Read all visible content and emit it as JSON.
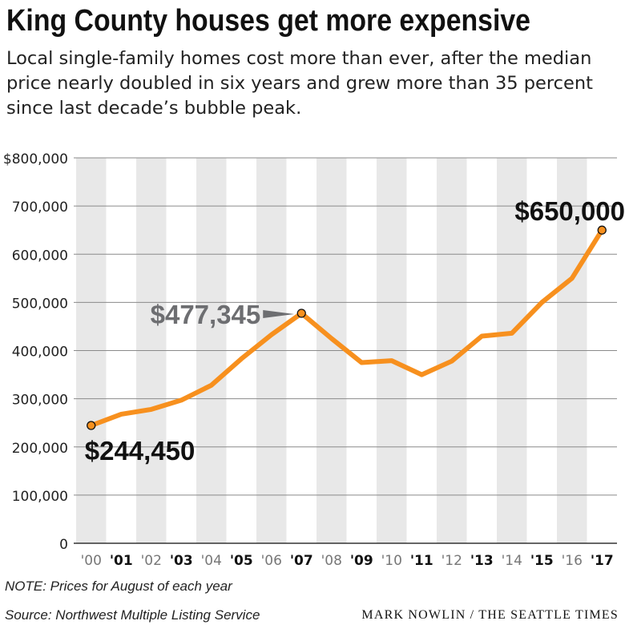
{
  "colors": {
    "line": "#f7901e",
    "band": "#e8e8e8",
    "text": "#111111",
    "callout_gray": "#6d6e71"
  },
  "header": {
    "title": "King County houses get more expensive",
    "subtitle_lines": [
      "Local single-family homes cost more than ever, after the median",
      "price nearly doubled in six years and grew more than 35 percent",
      "since last decade’s bubble peak."
    ]
  },
  "footer": {
    "note": "NOTE: Prices for August of each year",
    "source": "Source: Northwest Multiple Listing Service",
    "credit": "MARK NOWLIN / THE SEATTLE TIMES"
  },
  "chart_data": {
    "type": "line",
    "title": "King County houses get more expensive",
    "x": [
      "'00",
      "'01",
      "'02",
      "'03",
      "'04",
      "'05",
      "'06",
      "'07",
      "'08",
      "'09",
      "'10",
      "'11",
      "'12",
      "'13",
      "'14",
      "'15",
      "'16",
      "'17"
    ],
    "series": [
      {
        "values": [
          244450,
          268000,
          278000,
          297000,
          328000,
          383000,
          433000,
          477345,
          425000,
          375000,
          379000,
          350000,
          378000,
          430000,
          436000,
          500000,
          550000,
          650000
        ]
      }
    ],
    "ylim": [
      0,
      800000
    ],
    "yticks": [
      0,
      100000,
      200000,
      300000,
      400000,
      500000,
      600000,
      700000,
      800000
    ],
    "ytick_labels": [
      "0",
      "100,000",
      "200,000",
      "300,000",
      "400,000",
      "500,000",
      "600,000",
      "700,000",
      "$800,000"
    ],
    "bold_x_labels": [
      "'01",
      "'03",
      "'05",
      "'07",
      "'09",
      "'11",
      "'13",
      "'15",
      "'17"
    ],
    "grid": true,
    "annotations": [
      {
        "x": "'00",
        "label": "$244,450",
        "color": "#111111"
      },
      {
        "x": "'07",
        "label": "$477,345",
        "color": "#6d6e71"
      },
      {
        "x": "'17",
        "label": "$650,000",
        "color": "#111111"
      }
    ]
  }
}
